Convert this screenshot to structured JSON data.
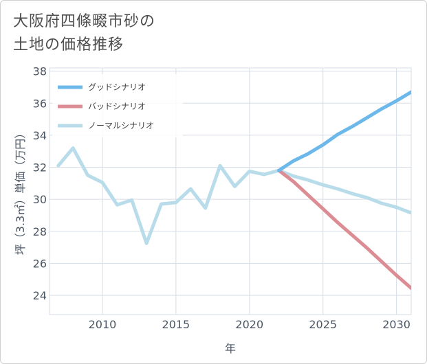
{
  "title_lines": [
    "大阪府四條畷市砂の",
    "土地の価格推移"
  ],
  "chart_data": {
    "type": "line",
    "xlabel": "年",
    "ylabel": "坪（3.3㎡）単価（万円）",
    "xlim": [
      2006.4,
      2031
    ],
    "ylim": [
      22.8,
      38.2
    ],
    "xticks": [
      2010,
      2015,
      2020,
      2025,
      2030
    ],
    "yticks": [
      24,
      26,
      28,
      30,
      32,
      34,
      36,
      38
    ],
    "grid": true,
    "legend_position": "top-left",
    "series": [
      {
        "name": "グッドシナリオ",
        "color": "#6cb8ea",
        "x": [
          2022,
          2023,
          2024,
          2025,
          2026,
          2027,
          2028,
          2029,
          2030,
          2031
        ],
        "values": [
          31.8,
          32.4,
          32.85,
          33.4,
          34.05,
          34.55,
          35.1,
          35.65,
          36.15,
          36.7
        ]
      },
      {
        "name": "バッドシナリオ",
        "color": "#dc8c93",
        "x": [
          2022,
          2023,
          2024,
          2025,
          2026,
          2027,
          2028,
          2029,
          2030,
          2031
        ],
        "values": [
          31.8,
          31.1,
          30.25,
          29.4,
          28.55,
          27.75,
          26.95,
          26.1,
          25.25,
          24.45
        ]
      },
      {
        "name": "ノーマルシナリオ",
        "color": "#b9dcea",
        "x": [
          2007,
          2008,
          2009,
          2010,
          2011,
          2012,
          2013,
          2014,
          2015,
          2016,
          2017,
          2018,
          2019,
          2020,
          2021,
          2022,
          2023,
          2024,
          2025,
          2026,
          2027,
          2028,
          2029,
          2030,
          2031
        ],
        "values": [
          32.1,
          33.2,
          31.5,
          31.05,
          29.65,
          29.95,
          27.25,
          29.7,
          29.8,
          30.65,
          29.45,
          32.1,
          30.8,
          31.75,
          31.55,
          31.8,
          31.45,
          31.2,
          30.9,
          30.65,
          30.35,
          30.1,
          29.75,
          29.5,
          29.15
        ]
      }
    ]
  }
}
